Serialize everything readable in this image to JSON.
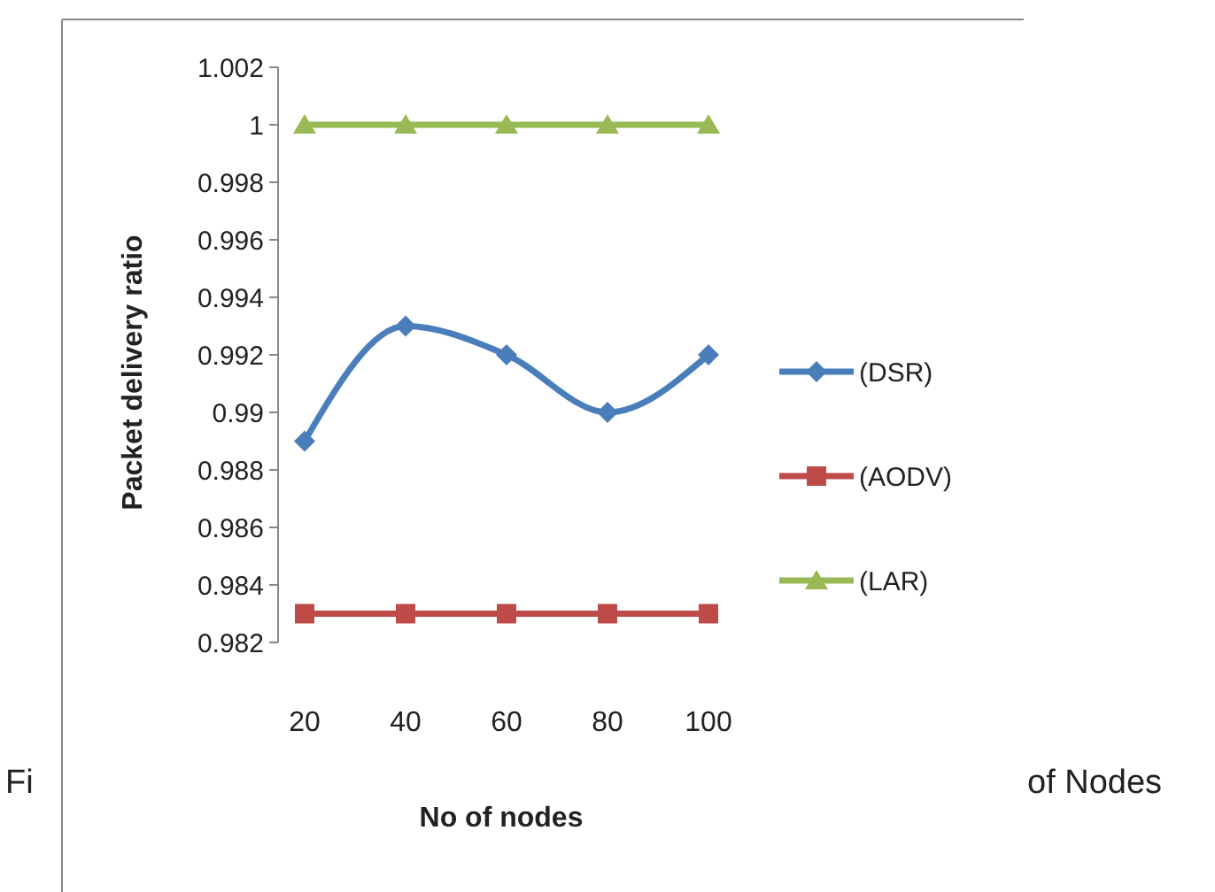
{
  "chart_data": {
    "type": "line",
    "xlabel": "No of nodes",
    "ylabel": "Packet delivery ratio",
    "categories": [
      "20",
      "40",
      "60",
      "80",
      "100"
    ],
    "series": [
      {
        "name": "(DSR)",
        "color": "#4a7ebb",
        "marker": "diamond",
        "values": [
          0.989,
          0.993,
          0.992,
          0.99,
          0.992
        ]
      },
      {
        "name": "(AODV)",
        "color": "#be4b48",
        "marker": "square",
        "values": [
          0.983,
          0.983,
          0.983,
          0.983,
          0.983
        ]
      },
      {
        "name": "(LAR)",
        "color": "#98b954",
        "marker": "triangle",
        "values": [
          1,
          1,
          1,
          1,
          1
        ]
      }
    ],
    "ylim": [
      0.982,
      1.002
    ],
    "yticks": [
      0.982,
      0.984,
      0.986,
      0.988,
      0.99,
      0.992,
      0.994,
      0.996,
      0.998,
      1,
      1.002
    ],
    "grid": false,
    "legend": "right",
    "line_style": "solid",
    "annotations": [
      "Fi",
      "of Nodes"
    ]
  }
}
